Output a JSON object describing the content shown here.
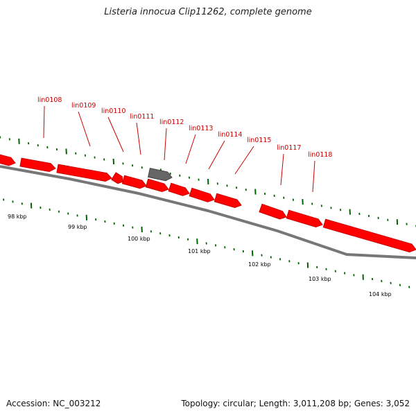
{
  "title": "Listeria innocua Clip11262, complete genome",
  "footer": {
    "accession": "Accession: NC_003212",
    "summary": "Topology: circular; Length: 3,011,208 bp; Genes: 3,052"
  },
  "colors": {
    "gene_fill": "#ff0000",
    "gene_stroke": "#cc0000",
    "pseudo_fill": "#666666",
    "backbone": "#777777",
    "tick": "#006400",
    "label": "#cc0000"
  },
  "gene_labels": [
    "lin0108",
    "lin0109",
    "lin0110",
    "lin0111",
    "lin0112",
    "lin0113",
    "lin0114",
    "lin0115",
    "lin0117",
    "lin0118"
  ],
  "scale_labels": [
    "98 kbp",
    "99 kbp",
    "100 kbp",
    "101 kbp",
    "102 kbp",
    "103 kbp",
    "104 kbp"
  ]
}
